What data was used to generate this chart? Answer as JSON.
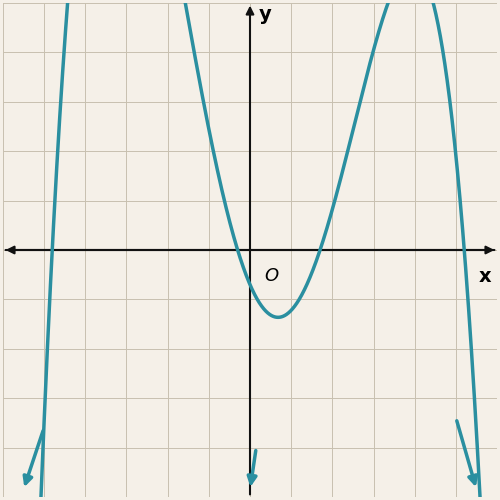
{
  "title": "",
  "xlabel": "x",
  "ylabel": "y",
  "origin_label": "O",
  "curve_color": "#2a8fa0",
  "curve_linewidth": 2.5,
  "arrow_color": "#2a8fa0",
  "background_color": "#f5f0e8",
  "grid_color": "#c8c0b0",
  "axis_color": "#111111",
  "xlim": [
    -6,
    6
  ],
  "ylim": [
    -5,
    5
  ],
  "roots": [
    -4.8,
    -0.3,
    1.7,
    5.2
  ],
  "scale": 0.055
}
